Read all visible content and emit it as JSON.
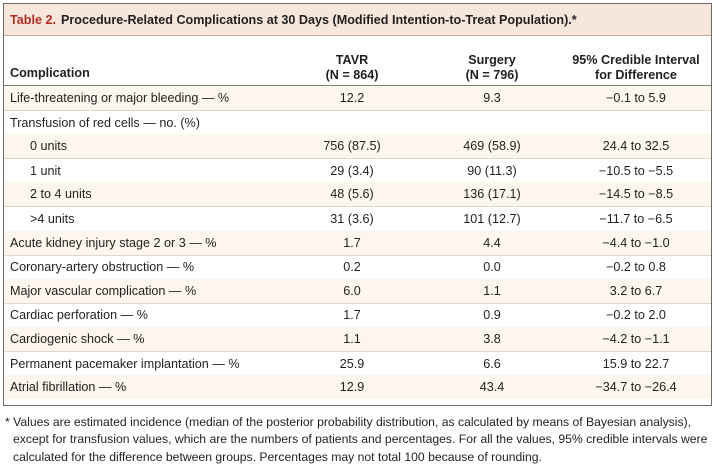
{
  "title": {
    "label": "Table 2.",
    "text": "Procedure-Related Complications at 30 Days (Modified Intention-to-Treat Population).*"
  },
  "header": {
    "complication": "Complication",
    "tavr_line1": "TAVR",
    "tavr_line2": "(N = 864)",
    "surgery_line1": "Surgery",
    "surgery_line2": "(N = 796)",
    "ci_line1": "95% Credible Interval",
    "ci_line2": "for Difference"
  },
  "rows": [
    {
      "name": "Life-threatening or major bleeding — %",
      "tavr": "12.2",
      "surgery": "9.3",
      "ci": "−0.1 to 5.9"
    },
    {
      "name": "Transfusion of red cells — no. (%)",
      "tavr": "",
      "surgery": "",
      "ci": ""
    },
    {
      "name": "0 units",
      "tavr": "756 (87.5)",
      "surgery": "469 (58.9)",
      "ci": "24.4 to 32.5"
    },
    {
      "name": "1 unit",
      "tavr": "29 (3.4)",
      "surgery": "90 (11.3)",
      "ci": "−10.5 to −5.5"
    },
    {
      "name": "2 to 4 units",
      "tavr": "48 (5.6)",
      "surgery": "136 (17.1)",
      "ci": "−14.5 to −8.5"
    },
    {
      "name": ">4 units",
      "tavr": "31 (3.6)",
      "surgery": "101 (12.7)",
      "ci": "−11.7 to −6.5"
    },
    {
      "name": "Acute kidney injury stage 2 or 3 — %",
      "tavr": "1.7",
      "surgery": "4.4",
      "ci": "−4.4 to −1.0"
    },
    {
      "name": "Coronary-artery obstruction — %",
      "tavr": "0.2",
      "surgery": "0.0",
      "ci": "−0.2 to 0.8"
    },
    {
      "name": "Major vascular complication — %",
      "tavr": "6.0",
      "surgery": "1.1",
      "ci": "3.2 to 6.7"
    },
    {
      "name": "Cardiac perforation — %",
      "tavr": "1.7",
      "surgery": "0.9",
      "ci": "−0.2 to 2.0"
    },
    {
      "name": "Cardiogenic shock — %",
      "tavr": "1.1",
      "surgery": "3.8",
      "ci": "−4.2 to −1.1"
    },
    {
      "name": "Permanent pacemaker implantation — %",
      "tavr": "25.9",
      "surgery": "6.6",
      "ci": "15.9 to 22.7"
    },
    {
      "name": "Atrial fibrillation — %",
      "tavr": "12.9",
      "surgery": "43.4",
      "ci": "−34.7 to −26.4"
    }
  ],
  "footnote": "* Values are estimated incidence (median of the posterior probability distribution, as calculated by means of Bayesian analysis), except for transfusion values, which are the numbers of patients and percentages. For all the values, 95% credible intervals were calculated for the difference between groups. Percentages may not total 100 because of rounding.",
  "colors": {
    "title_band": "#f7e6dc",
    "title_label": "#b22c22",
    "row_shade": "#fcf6ec"
  }
}
